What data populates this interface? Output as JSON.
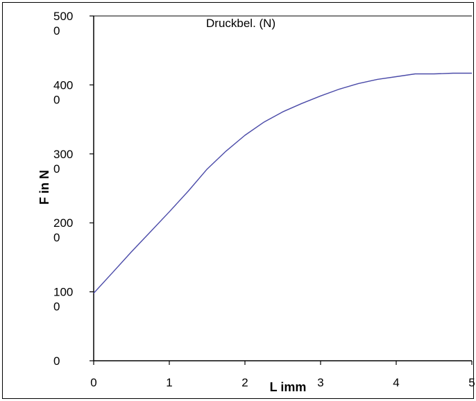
{
  "chart_data": {
    "type": "line",
    "title": "",
    "xlabel": "L imm",
    "ylabel": "F in N",
    "xlim": [
      0,
      5
    ],
    "ylim": [
      0,
      5000
    ],
    "grid": false,
    "legend_position": "top",
    "x_ticks": [
      {
        "value": 0,
        "label": "0"
      },
      {
        "value": 1,
        "label": "1"
      },
      {
        "value": 2,
        "label": "2"
      },
      {
        "value": 3,
        "label": "3"
      },
      {
        "value": 4,
        "label": "4"
      },
      {
        "value": 5,
        "label": "5"
      }
    ],
    "y_ticks": [
      {
        "value": 0,
        "line1": "0",
        "line2": ""
      },
      {
        "value": 1000,
        "line1": "100",
        "line2": "0"
      },
      {
        "value": 2000,
        "line1": "200",
        "line2": "0"
      },
      {
        "value": 3000,
        "line1": "300",
        "line2": "0"
      },
      {
        "value": 4000,
        "line1": "400",
        "line2": "0"
      },
      {
        "value": 5000,
        "line1": "500",
        "line2": "0"
      }
    ],
    "series": [
      {
        "name": "Druckbel. (N)",
        "color": "#4a4aa8",
        "x": [
          0,
          0.25,
          0.5,
          0.75,
          1.0,
          1.25,
          1.5,
          1.75,
          2.0,
          2.25,
          2.5,
          2.75,
          3.0,
          3.25,
          3.5,
          3.75,
          4.0,
          4.25,
          4.5,
          4.75,
          5.0
        ],
        "y": [
          980,
          1280,
          1580,
          1870,
          2160,
          2460,
          2780,
          3040,
          3270,
          3460,
          3610,
          3730,
          3840,
          3940,
          4020,
          4080,
          4120,
          4160,
          4160,
          4170,
          4170
        ]
      }
    ]
  }
}
